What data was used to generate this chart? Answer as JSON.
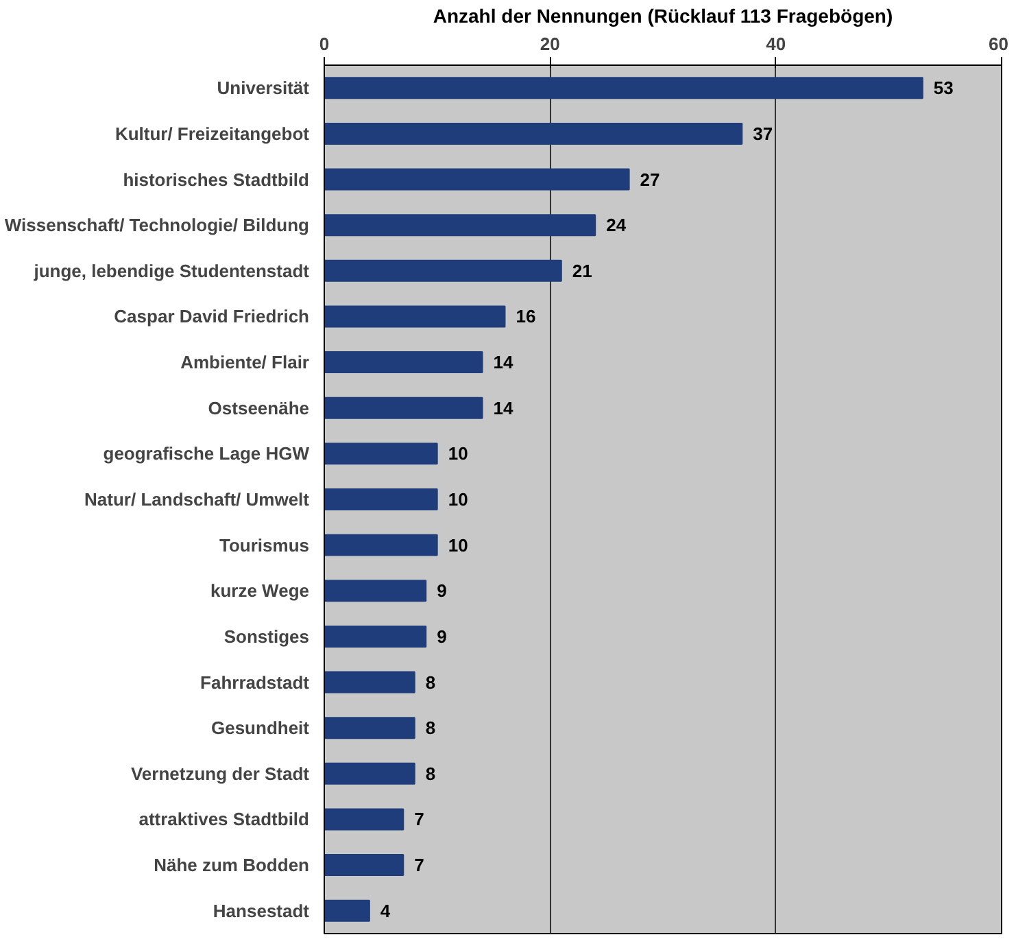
{
  "chart_data": {
    "type": "bar",
    "orientation": "horizontal",
    "xlabel": "Anzahl der Nennungen (Rücklauf 113 Fragebögen)",
    "categories": [
      "Universität",
      "Kultur/ Freizeitangebot",
      "historisches Stadtbild",
      "Wissenschaft/ Technologie/ Bildung",
      "junge, lebendige Studentenstadt",
      "Caspar David Friedrich",
      "Ambiente/ Flair",
      "Ostseenähe",
      "geografische Lage HGW",
      "Natur/ Landschaft/ Umwelt",
      "Tourismus",
      "kurze Wege",
      "Sonstiges",
      "Fahrradstadt",
      "Gesundheit",
      "Vernetzung der Stadt",
      "attraktives Stadtbild",
      "Nähe zum Bodden",
      "Hansestadt"
    ],
    "values": [
      53,
      37,
      27,
      24,
      21,
      16,
      14,
      14,
      10,
      10,
      10,
      9,
      9,
      8,
      8,
      8,
      7,
      7,
      4
    ],
    "color": "#1f3d7a",
    "xlim": [
      0,
      60
    ],
    "xticks": [
      0,
      20,
      40,
      60
    ],
    "grid": "x",
    "data_labels": true
  }
}
